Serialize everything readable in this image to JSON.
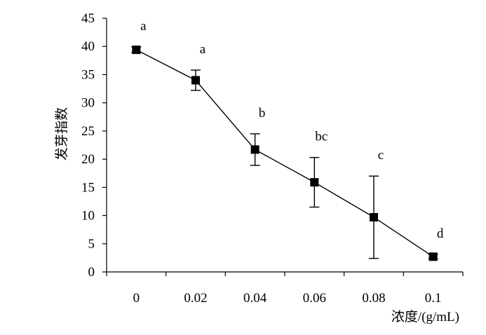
{
  "chart_data": {
    "type": "line",
    "title": "",
    "xlabel": "浓度/(g/mL)",
    "ylabel": "发芽指数",
    "categories": [
      "0",
      "0.02",
      "0.04",
      "0.06",
      "0.08",
      "0.1"
    ],
    "yticks": [
      "0",
      "5",
      "10",
      "15",
      "20",
      "25",
      "30",
      "35",
      "40",
      "45"
    ],
    "ylim": [
      0,
      45
    ],
    "grid": false,
    "legend": "none",
    "series": [
      {
        "values": [
          39.4,
          34.0,
          21.7,
          15.9,
          9.7,
          2.7
        ],
        "error_low": [
          0.5,
          1.8,
          2.8,
          4.4,
          7.3,
          0.4
        ],
        "error_high": [
          0.5,
          1.8,
          2.8,
          4.4,
          7.3,
          0.4
        ],
        "significance": [
          "a",
          "a",
          "b",
          "bc",
          "c",
          "d"
        ],
        "color": "#000000",
        "marker": "square"
      }
    ]
  }
}
